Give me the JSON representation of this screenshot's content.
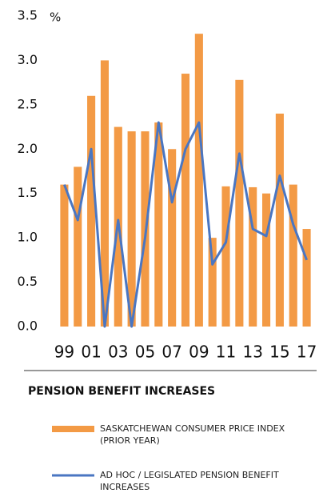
{
  "chart_data": {
    "type": "bar",
    "unit": "%",
    "title": "PENSION BENEFIT INCREASES",
    "categories": [
      "99",
      null,
      "01",
      null,
      "03",
      null,
      "05",
      null,
      "07",
      null,
      "09",
      null,
      "11",
      null,
      "13",
      null,
      "15",
      null,
      "17"
    ],
    "series": [
      {
        "name": "SASKATCHEWAN CONSUMER PRICE INDEX (PRIOR YEAR)",
        "type": "bar",
        "color": "#f39a45",
        "values": [
          1.6,
          1.8,
          2.6,
          3.0,
          2.25,
          2.2,
          2.2,
          2.3,
          2.0,
          2.85,
          3.3,
          1.0,
          1.58,
          2.78,
          1.57,
          1.5,
          2.4,
          1.6,
          1.1
        ]
      },
      {
        "name": "AD HOC / LEGISLATED PENSION BENEFIT INCREASES",
        "type": "line",
        "color": "#4a76c2",
        "values": [
          1.6,
          1.2,
          2.0,
          0.0,
          1.2,
          0.0,
          1.0,
          2.3,
          1.4,
          2.0,
          2.3,
          0.7,
          0.95,
          1.95,
          1.1,
          1.02,
          1.7,
          1.15,
          0.75
        ]
      }
    ],
    "ylim": [
      0,
      3.5
    ],
    "yticks": [
      {
        "value": 0,
        "label": "0.0"
      },
      0.5,
      {
        "value": 1,
        "label": "1.0"
      },
      1.5,
      {
        "value": 2,
        "label": "2.0"
      },
      2.5,
      {
        "value": 3,
        "label": "3.0"
      },
      3.5
    ],
    "grid": false
  }
}
